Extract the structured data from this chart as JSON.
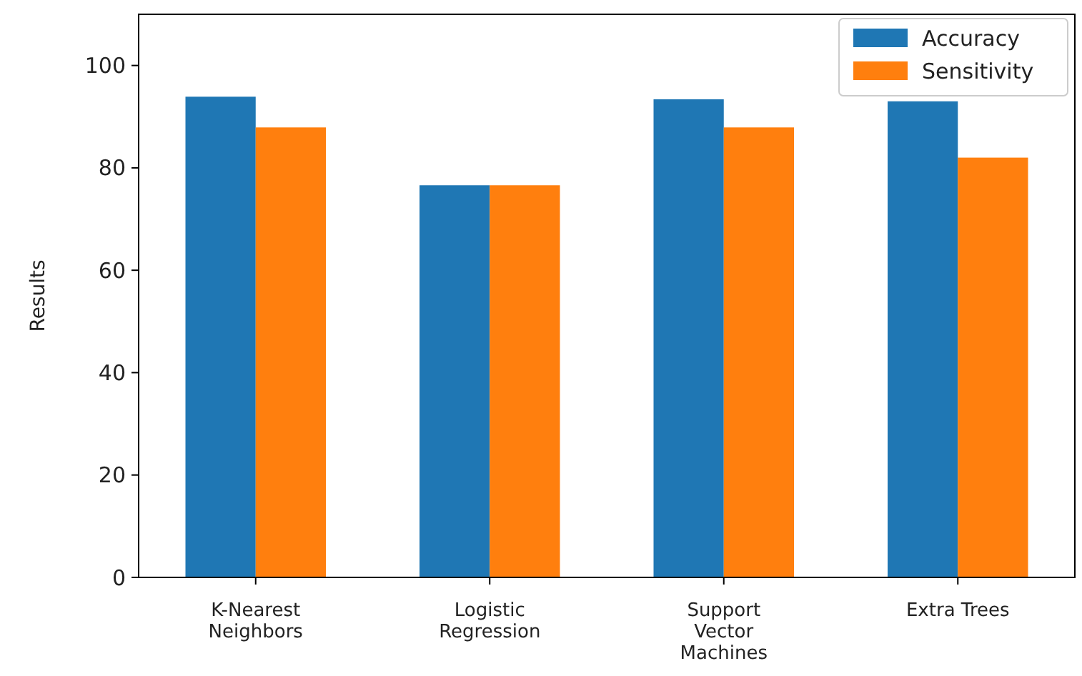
{
  "chart_data": {
    "type": "bar",
    "ylabel": "Results",
    "categories": [
      "K-Nearest\nNeighbors",
      "Logistic\nRegression",
      "Support\nVector\nMachines",
      "Extra Trees"
    ],
    "series": [
      {
        "name": "Accuracy",
        "color": "#1f77b4",
        "values": [
          93.9,
          76.6,
          93.4,
          93.0
        ]
      },
      {
        "name": "Sensitivity",
        "color": "#ff7f0e",
        "values": [
          87.9,
          76.6,
          87.9,
          82.0
        ]
      }
    ],
    "ylim": [
      0,
      110
    ],
    "yticks": [
      0,
      20,
      40,
      60,
      80,
      100
    ],
    "grid": false,
    "legend": "top right"
  }
}
